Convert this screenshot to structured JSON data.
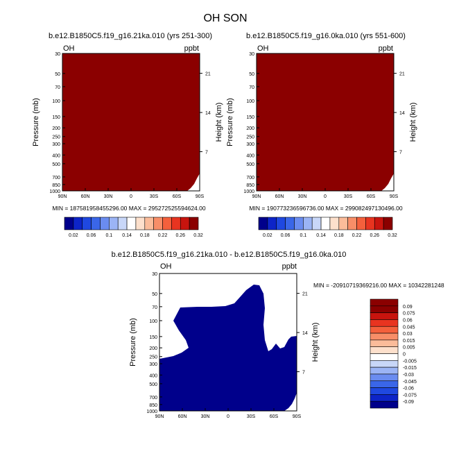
{
  "page": {
    "title": "OH SON"
  },
  "colors": {
    "panel_fill": "#8b0000",
    "diff_fill": "#00008b",
    "palette": [
      "#00008b",
      "#0d24c8",
      "#1f48e0",
      "#3a66e8",
      "#6a8cf0",
      "#9bb4f5",
      "#c8d7f8",
      "#ffffff",
      "#fde0cc",
      "#fbbc9a",
      "#f88e68",
      "#f4603c",
      "#e83420",
      "#c8140e",
      "#8b0000"
    ]
  },
  "chart_data": [
    {
      "type": "heatmap",
      "title": "b.e12.B1850C5.f19_g16.21ka.010 (yrs 251-300)",
      "variable_label": "OH",
      "units_label": "ppbt",
      "ylabel": "Pressure (mb)",
      "ylabel_right": "Height (km)",
      "x_ticks": [
        "90N",
        "60N",
        "30N",
        "0",
        "30S",
        "60S",
        "90S"
      ],
      "y_ticks": [
        "30",
        "50",
        "70",
        "100",
        "150",
        "200",
        "250",
        "300",
        "400",
        "500",
        "700",
        "850",
        "1000"
      ],
      "y_ticks_right": [
        "21",
        "14",
        "7"
      ],
      "min_max_text": "MIN = 187581958455296.00   MAX = 295272525594624.00",
      "colorbar_labels": [
        "0.02",
        "0.06",
        "0.1",
        "0.14",
        "0.18",
        "0.22",
        "0.26",
        "0.32"
      ],
      "field_description_values": {
        "min": 187581958455296.0,
        "max": 295272525594624.0
      }
    },
    {
      "type": "heatmap",
      "title": "b.e12.B1850C5.f19_g16.0ka.010 (yrs 551-600)",
      "variable_label": "OH",
      "units_label": "ppbt",
      "ylabel": "Pressure (mb)",
      "ylabel_right": "Height (km)",
      "x_ticks": [
        "90N",
        "60N",
        "30N",
        "0",
        "30S",
        "60S",
        "90S"
      ],
      "y_ticks": [
        "30",
        "50",
        "70",
        "100",
        "150",
        "200",
        "250",
        "300",
        "400",
        "500",
        "700",
        "850",
        "1000"
      ],
      "y_ticks_right": [
        "21",
        "14",
        "7"
      ],
      "min_max_text": "MIN = 190773236596736.00   MAX = 299082497130496.00",
      "colorbar_labels": [
        "0.02",
        "0.06",
        "0.1",
        "0.14",
        "0.18",
        "0.22",
        "0.26",
        "0.32"
      ],
      "field_description_values": {
        "min": 190773236596736.0,
        "max": 299082497130496.0
      }
    },
    {
      "type": "heatmap",
      "title": "b.e12.B1850C5.f19_g16.21ka.010 - b.e12.B1850C5.f19_g16.0ka.010",
      "variable_label": "OH",
      "units_label": "ppbt",
      "ylabel": "Pressure (mb)",
      "ylabel_right": "Height (km)",
      "x_ticks": [
        "90N",
        "60N",
        "30N",
        "0",
        "30S",
        "60S",
        "90S"
      ],
      "y_ticks": [
        "30",
        "50",
        "70",
        "100",
        "150",
        "200",
        "250",
        "300",
        "400",
        "500",
        "700",
        "850",
        "1000"
      ],
      "y_ticks_right": [
        "21",
        "14",
        "7"
      ],
      "min_max_text": "MIN = -20910719369216.00   MAX = 10342281248",
      "colorbar_labels": [
        "0.09",
        "0.075",
        "0.06",
        "0.045",
        "0.03",
        "0.015",
        "0.005",
        "0",
        "-0.005",
        "-0.015",
        "-0.03",
        "-0.045",
        "-0.06",
        "-0.075",
        "-0.09"
      ],
      "field_description_values": {
        "min": -20910719369216.0,
        "max": 10342281248
      }
    }
  ]
}
